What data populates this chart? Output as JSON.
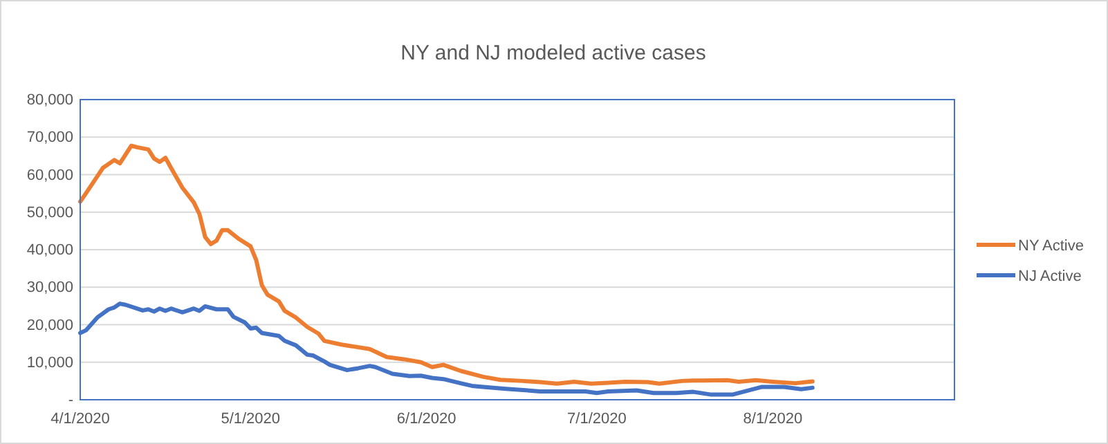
{
  "chart_data": {
    "type": "line",
    "title": "NY and NJ modeled active cases",
    "xlim": [
      "2020-04-01",
      "2020-09-02"
    ],
    "xticks": [
      {
        "value": "2020-04-01",
        "label": "4/1/2020"
      },
      {
        "value": "2020-05-01",
        "label": "5/1/2020"
      },
      {
        "value": "2020-06-01",
        "label": "6/1/2020"
      },
      {
        "value": "2020-07-01",
        "label": "7/1/2020"
      },
      {
        "value": "2020-08-01",
        "label": "8/1/2020"
      }
    ],
    "ylim": [
      0,
      80000
    ],
    "yticks": [
      {
        "value": 0,
        "label": "-"
      },
      {
        "value": 10000,
        "label": "10,000"
      },
      {
        "value": 20000,
        "label": "20,000"
      },
      {
        "value": 30000,
        "label": "30,000"
      },
      {
        "value": 40000,
        "label": "40,000"
      },
      {
        "value": 50000,
        "label": "50,000"
      },
      {
        "value": 60000,
        "label": "60,000"
      },
      {
        "value": 70000,
        "label": "70,000"
      },
      {
        "value": 80000,
        "label": "80,000"
      }
    ],
    "grid": "y",
    "legend": "right",
    "marker": "none",
    "line_style": "solid",
    "series": [
      {
        "name": "NY Active",
        "color": "#ed7d31",
        "x": [
          "2020-04-01",
          "2020-04-02",
          "2020-04-05",
          "2020-04-07",
          "2020-04-08",
          "2020-04-10",
          "2020-04-11",
          "2020-04-13",
          "2020-04-14",
          "2020-04-15",
          "2020-04-16",
          "2020-04-17",
          "2020-04-19",
          "2020-04-21",
          "2020-04-22",
          "2020-04-23",
          "2020-04-24",
          "2020-04-25",
          "2020-04-26",
          "2020-04-27",
          "2020-04-29",
          "2020-05-01",
          "2020-05-02",
          "2020-05-03",
          "2020-05-04",
          "2020-05-06",
          "2020-05-07",
          "2020-05-09",
          "2020-05-11",
          "2020-05-13",
          "2020-05-14",
          "2020-05-17",
          "2020-05-22",
          "2020-05-25",
          "2020-05-28",
          "2020-05-31",
          "2020-06-02",
          "2020-06-04",
          "2020-06-07",
          "2020-06-11",
          "2020-06-14",
          "2020-06-18",
          "2020-06-21",
          "2020-06-24",
          "2020-06-27",
          "2020-06-30",
          "2020-07-03",
          "2020-07-06",
          "2020-07-10",
          "2020-07-12",
          "2020-07-16",
          "2020-07-18",
          "2020-07-24",
          "2020-07-26",
          "2020-07-29",
          "2020-08-01",
          "2020-08-05",
          "2020-08-08"
        ],
        "values": [
          52800,
          55000,
          61800,
          63900,
          63000,
          67700,
          67300,
          66700,
          64300,
          63400,
          64500,
          61800,
          56500,
          52600,
          49500,
          43400,
          41500,
          42400,
          45200,
          45200,
          42800,
          40900,
          37200,
          30500,
          28000,
          26200,
          23700,
          21900,
          19400,
          17600,
          15700,
          14700,
          13500,
          11400,
          10800,
          10000,
          8700,
          9300,
          7700,
          6100,
          5300,
          5000,
          4700,
          4300,
          4800,
          4300,
          4500,
          4800,
          4700,
          4300,
          5000,
          5100,
          5200,
          4800,
          5200,
          4800,
          4400,
          4900
        ]
      },
      {
        "name": "NJ Active",
        "color": "#4472c4",
        "x": [
          "2020-04-01",
          "2020-04-02",
          "2020-04-04",
          "2020-04-06",
          "2020-04-07",
          "2020-04-08",
          "2020-04-09",
          "2020-04-11",
          "2020-04-12",
          "2020-04-13",
          "2020-04-14",
          "2020-04-15",
          "2020-04-16",
          "2020-04-17",
          "2020-04-19",
          "2020-04-21",
          "2020-04-22",
          "2020-04-23",
          "2020-04-25",
          "2020-04-27",
          "2020-04-28",
          "2020-04-30",
          "2020-05-01",
          "2020-05-02",
          "2020-05-03",
          "2020-05-06",
          "2020-05-07",
          "2020-05-09",
          "2020-05-11",
          "2020-05-12",
          "2020-05-14",
          "2020-05-15",
          "2020-05-18",
          "2020-05-20",
          "2020-05-22",
          "2020-05-23",
          "2020-05-26",
          "2020-05-29",
          "2020-05-31",
          "2020-06-02",
          "2020-06-04",
          "2020-06-07",
          "2020-06-09",
          "2020-06-11",
          "2020-06-15",
          "2020-06-18",
          "2020-06-21",
          "2020-06-29",
          "2020-07-01",
          "2020-07-03",
          "2020-07-08",
          "2020-07-11",
          "2020-07-15",
          "2020-07-18",
          "2020-07-21",
          "2020-07-25",
          "2020-07-30",
          "2020-08-03",
          "2020-08-06",
          "2020-08-08"
        ],
        "values": [
          17800,
          18500,
          21900,
          24100,
          24600,
          25600,
          25300,
          24300,
          23800,
          24100,
          23500,
          24300,
          23700,
          24300,
          23300,
          24300,
          23700,
          24900,
          24100,
          24100,
          22100,
          20600,
          19000,
          19200,
          17800,
          17000,
          15700,
          14500,
          12000,
          11800,
          10200,
          9300,
          7900,
          8400,
          9000,
          8700,
          6900,
          6300,
          6400,
          5800,
          5500,
          4400,
          3700,
          3400,
          2900,
          2600,
          2200,
          2200,
          1800,
          2200,
          2500,
          1800,
          1800,
          2100,
          1400,
          1400,
          3400,
          3400,
          2800,
          3200
        ]
      }
    ]
  }
}
